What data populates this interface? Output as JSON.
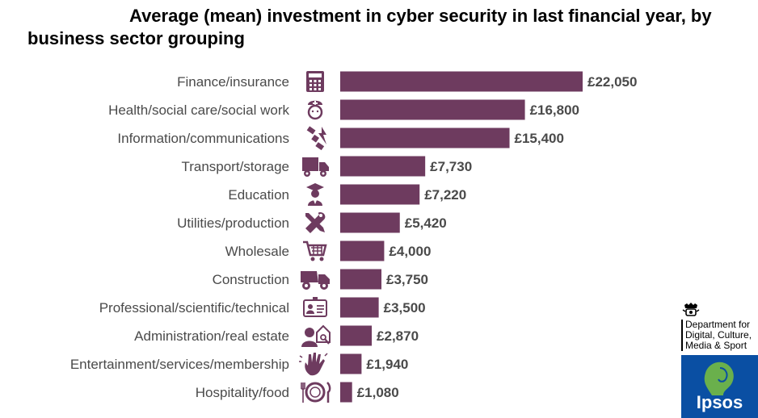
{
  "colors": {
    "bar": "#6e3b5f",
    "icon": "#6e3b5f",
    "label": "#4a4a4a",
    "ipsos_blue": "#0a4fa3",
    "ipsos_green": "#6ab04c"
  },
  "chart_data": {
    "type": "bar",
    "orientation": "horizontal",
    "title_line1": "Average (mean) investment in cyber security in last financial year, by",
    "title_line2": "business sector grouping",
    "categories": [
      "Finance/insurance",
      "Health/social care/social work",
      "Information/communications",
      "Transport/storage",
      "Education",
      "Utilities/production",
      "Wholesale",
      "Construction",
      "Professional/scientific/technical",
      "Administration/real estate",
      "Entertainment/services/membership",
      "Hospitality/food"
    ],
    "values": [
      22050,
      16800,
      15400,
      7730,
      7220,
      5420,
      4000,
      3750,
      3500,
      2870,
      1940,
      1080
    ],
    "value_labels": [
      "£22,050",
      "£16,800",
      "£15,400",
      "£7,730",
      "£7,220",
      "£5,420",
      "£4,000",
      "£3,750",
      "£3,500",
      "£2,870",
      "£1,940",
      "£1,080"
    ],
    "icons": [
      "calculator-icon",
      "nurse-icon",
      "satellite-icon",
      "truck-icon",
      "graduate-icon",
      "tools-icon",
      "shopping-cart-icon",
      "dump-truck-icon",
      "id-card-icon",
      "agent-house-icon",
      "hand-icon",
      "plate-cutlery-icon"
    ],
    "xlim": [
      0,
      22050
    ],
    "grid": false,
    "legend": "none"
  },
  "logos": {
    "dept_line1": "Department for",
    "dept_line2": "Digital, Culture,",
    "dept_line3": "Media & Sport",
    "ipsos": "Ipsos"
  }
}
